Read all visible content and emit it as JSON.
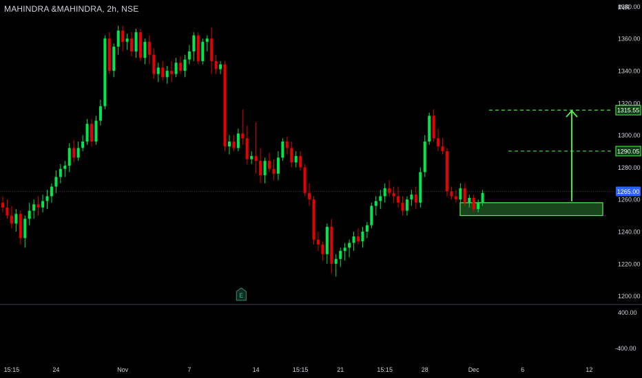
{
  "header": {
    "title": "MAHINDRA &MAHINDRA, 2h, NSE",
    "currency": "INR"
  },
  "colors": {
    "background": "#000000",
    "up": "#00e64d",
    "down": "#e60000",
    "axis_text": "#d1d4dc",
    "annotation": "#4dff4d",
    "zone_fill": "#2e7d32",
    "price_badge": "#2962ff"
  },
  "chart_data": {
    "type": "candlestick",
    "title": "MAHINDRA &MAHINDRA, 2h, NSE",
    "ylabel": "INR",
    "ylim": [
      1196,
      1384
    ],
    "price_ticks": [
      1200,
      1220,
      1240,
      1260,
      1280,
      1300,
      1320,
      1340,
      1360,
      1380
    ],
    "price_tick_labels": [
      "1200.00",
      "1220.00",
      "1240.00",
      "1260.00",
      "1280.00",
      "1300.00",
      "1320.00",
      "1340.00",
      "1360.00",
      "1380.00"
    ],
    "last_price": {
      "value": 1265,
      "label": "1265.00"
    },
    "levels": [
      {
        "value": 1315.55,
        "label": "1315.55"
      },
      {
        "value": 1290.05,
        "label": "1290.05"
      }
    ],
    "support_zone": [
      1250,
      1258
    ],
    "x_labels": [
      {
        "i": 2,
        "label": "15:15"
      },
      {
        "i": 12,
        "label": "24"
      },
      {
        "i": 27,
        "label": "Nov"
      },
      {
        "i": 42,
        "label": "7"
      },
      {
        "i": 57,
        "label": "14"
      },
      {
        "i": 67,
        "label": "15:15"
      },
      {
        "i": 76,
        "label": "21"
      },
      {
        "i": 86,
        "label": "15:15"
      },
      {
        "i": 95,
        "label": "28"
      },
      {
        "i": 106,
        "label": "Dec"
      },
      {
        "i": 117,
        "label": "6"
      },
      {
        "i": 132,
        "label": "12"
      }
    ],
    "volume_panel": {
      "tick_labels": [
        "400.00",
        "-400.00"
      ]
    },
    "event_marker": {
      "i": 54,
      "label": "E"
    },
    "candles": [
      [
        1258,
        1262,
        1252,
        1255
      ],
      [
        1255,
        1260,
        1248,
        1250
      ],
      [
        1250,
        1256,
        1242,
        1245
      ],
      [
        1245,
        1254,
        1240,
        1251
      ],
      [
        1251,
        1253,
        1232,
        1236
      ],
      [
        1236,
        1250,
        1230,
        1248
      ],
      [
        1248,
        1258,
        1244,
        1253
      ],
      [
        1253,
        1260,
        1248,
        1257
      ],
      [
        1257,
        1262,
        1250,
        1255
      ],
      [
        1255,
        1263,
        1252,
        1259
      ],
      [
        1259,
        1266,
        1254,
        1262
      ],
      [
        1262,
        1270,
        1258,
        1268
      ],
      [
        1268,
        1278,
        1264,
        1274
      ],
      [
        1274,
        1282,
        1270,
        1279
      ],
      [
        1279,
        1284,
        1274,
        1281
      ],
      [
        1281,
        1295,
        1277,
        1292
      ],
      [
        1292,
        1297,
        1283,
        1286
      ],
      [
        1286,
        1296,
        1284,
        1292
      ],
      [
        1292,
        1300,
        1290,
        1296
      ],
      [
        1296,
        1310,
        1294,
        1307
      ],
      [
        1307,
        1310,
        1293,
        1296
      ],
      [
        1296,
        1312,
        1294,
        1309
      ],
      [
        1309,
        1322,
        1306,
        1318
      ],
      [
        1318,
        1362,
        1316,
        1360
      ],
      [
        1360,
        1364,
        1338,
        1340
      ],
      [
        1340,
        1357,
        1336,
        1355
      ],
      [
        1355,
        1368,
        1350,
        1365
      ],
      [
        1365,
        1368,
        1352,
        1358
      ],
      [
        1358,
        1363,
        1353,
        1360
      ],
      [
        1360,
        1364,
        1349,
        1352
      ],
      [
        1352,
        1366,
        1348,
        1364
      ],
      [
        1364,
        1366,
        1346,
        1348
      ],
      [
        1348,
        1360,
        1344,
        1358
      ],
      [
        1358,
        1362,
        1344,
        1350
      ],
      [
        1350,
        1354,
        1335,
        1338
      ],
      [
        1338,
        1345,
        1333,
        1342
      ],
      [
        1342,
        1346,
        1334,
        1336
      ],
      [
        1336,
        1343,
        1332,
        1340
      ],
      [
        1340,
        1346,
        1333,
        1338
      ],
      [
        1338,
        1348,
        1336,
        1345
      ],
      [
        1345,
        1349,
        1338,
        1340
      ],
      [
        1340,
        1350,
        1336,
        1347
      ],
      [
        1347,
        1356,
        1344,
        1352
      ],
      [
        1352,
        1364,
        1346,
        1362
      ],
      [
        1362,
        1364,
        1344,
        1346
      ],
      [
        1346,
        1360,
        1344,
        1358
      ],
      [
        1358,
        1362,
        1352,
        1360
      ],
      [
        1360,
        1367,
        1338,
        1346
      ],
      [
        1346,
        1350,
        1338,
        1341
      ],
      [
        1341,
        1346,
        1338,
        1344
      ],
      [
        1344,
        1346,
        1290,
        1293
      ],
      [
        1293,
        1300,
        1288,
        1296
      ],
      [
        1296,
        1300,
        1290,
        1292
      ],
      [
        1292,
        1304,
        1290,
        1301
      ],
      [
        1301,
        1316,
        1294,
        1298
      ],
      [
        1298,
        1306,
        1282,
        1285
      ],
      [
        1285,
        1290,
        1282,
        1287
      ],
      [
        1287,
        1308,
        1276,
        1284
      ],
      [
        1284,
        1292,
        1270,
        1275
      ],
      [
        1275,
        1286,
        1270,
        1284
      ],
      [
        1284,
        1289,
        1277,
        1279
      ],
      [
        1279,
        1285,
        1272,
        1276
      ],
      [
        1276,
        1290,
        1272,
        1286
      ],
      [
        1286,
        1298,
        1284,
        1296
      ],
      [
        1296,
        1299,
        1288,
        1292
      ],
      [
        1292,
        1296,
        1280,
        1283
      ],
      [
        1283,
        1290,
        1280,
        1287
      ],
      [
        1287,
        1290,
        1278,
        1280
      ],
      [
        1280,
        1282,
        1262,
        1264
      ],
      [
        1264,
        1270,
        1256,
        1260
      ],
      [
        1260,
        1262,
        1232,
        1235
      ],
      [
        1235,
        1240,
        1228,
        1232
      ],
      [
        1232,
        1234,
        1222,
        1226
      ],
      [
        1226,
        1245,
        1220,
        1243
      ],
      [
        1243,
        1248,
        1214,
        1220
      ],
      [
        1220,
        1226,
        1212,
        1223
      ],
      [
        1223,
        1230,
        1218,
        1228
      ],
      [
        1228,
        1233,
        1222,
        1230
      ],
      [
        1230,
        1235,
        1224,
        1233
      ],
      [
        1233,
        1240,
        1228,
        1237
      ],
      [
        1237,
        1242,
        1232,
        1234
      ],
      [
        1234,
        1243,
        1230,
        1240
      ],
      [
        1240,
        1246,
        1236,
        1244
      ],
      [
        1244,
        1258,
        1242,
        1256
      ],
      [
        1256,
        1262,
        1250,
        1259
      ],
      [
        1259,
        1266,
        1254,
        1262
      ],
      [
        1262,
        1270,
        1258,
        1267
      ],
      [
        1267,
        1272,
        1262,
        1264
      ],
      [
        1264,
        1268,
        1258,
        1262
      ],
      [
        1262,
        1268,
        1255,
        1258
      ],
      [
        1258,
        1262,
        1250,
        1253
      ],
      [
        1253,
        1262,
        1250,
        1260
      ],
      [
        1260,
        1266,
        1256,
        1263
      ],
      [
        1263,
        1268,
        1254,
        1258
      ],
      [
        1258,
        1280,
        1255,
        1277
      ],
      [
        1277,
        1300,
        1274,
        1296
      ],
      [
        1296,
        1314,
        1294,
        1312
      ],
      [
        1312,
        1316,
        1296,
        1298
      ],
      [
        1298,
        1304,
        1290,
        1293
      ],
      [
        1293,
        1298,
        1288,
        1290
      ],
      [
        1290,
        1292,
        1262,
        1265
      ],
      [
        1265,
        1268,
        1260,
        1262
      ],
      [
        1262,
        1266,
        1258,
        1260
      ],
      [
        1260,
        1270,
        1257,
        1267
      ],
      [
        1267,
        1270,
        1256,
        1258
      ],
      [
        1258,
        1263,
        1255,
        1261
      ],
      [
        1261,
        1263,
        1252,
        1254
      ],
      [
        1254,
        1260,
        1252,
        1258
      ],
      [
        1258,
        1266,
        1256,
        1264
      ]
    ]
  }
}
